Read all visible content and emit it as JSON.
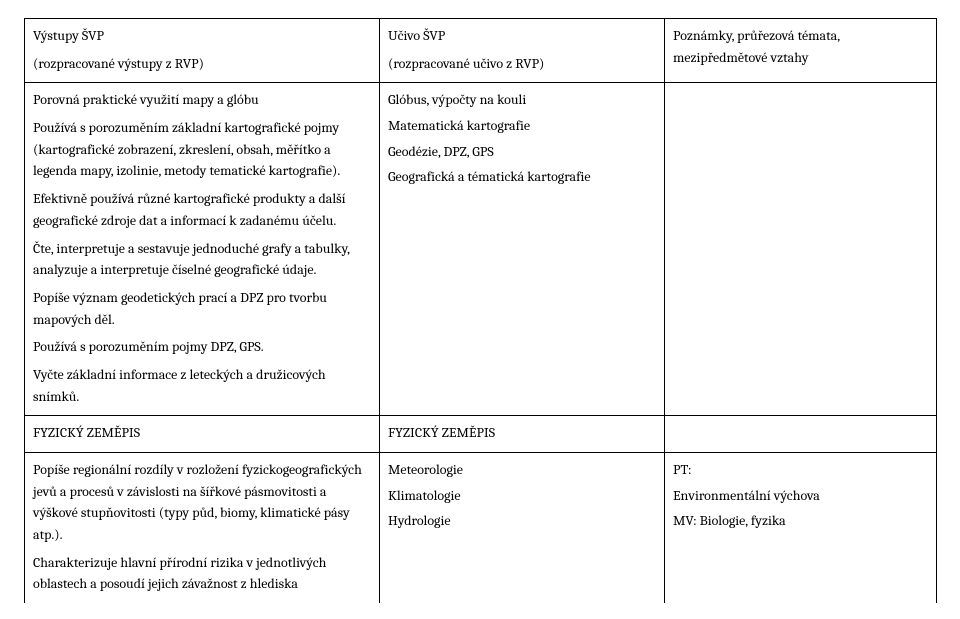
{
  "table": {
    "header": {
      "col1": {
        "line1": "Výstupy ŠVP",
        "line2": "(rozpracované výstupy z RVP)"
      },
      "col2": {
        "line1": "Učivo ŠVP",
        "line2": "(rozpracované učivo z RVP)"
      },
      "col3": {
        "line1": "Poznámky, průřezová témata, mezipředmětové vztahy"
      }
    },
    "row1": {
      "col1": {
        "p1": "Porovná praktické využití mapy a glóbu",
        "p2": "Používá s porozuměním základní kartografické pojmy (kartografické zobrazení, zkreslení, obsah, měřítko a legenda mapy, izolinie, metody tematické kartografie).",
        "p3": "Efektivně používá různé kartografické produkty a další geografické zdroje dat a informací k zadanému účelu.",
        "p4": "Čte, interpretuje a sestavuje jednoduché grafy a tabulky, analyzuje a interpretuje číselné geografické údaje.",
        "p5": "Popíše význam geodetických prací a DPZ pro tvorbu mapových děl.",
        "p6": "Používá s porozuměním pojmy DPZ, GPS.",
        "p7": "Vyčte základní informace z leteckých a družicových snímků."
      },
      "col2": {
        "p1": "Glóbus, výpočty na kouli",
        "p2": "Matematická kartografie",
        "p3": "Geodézie, DPZ, GPS",
        "p4": "Geografická a tématická kartografie"
      },
      "col3": ""
    },
    "row2": {
      "col1": "FYZICKÝ ZEMĚPIS",
      "col2": "FYZICKÝ ZEMĚPIS",
      "col3": ""
    },
    "row3": {
      "col1": {
        "p1": "Popíše regionální rozdíly v rozložení fyzickogeografických jevů a procesů v závislosti na šířkové pásmovitosti a výškové stupňovitosti (typy půd, biomy, klimatické pásy atp.).",
        "p2": "Charakterizuje hlavní přírodní rizika v jednotlivých oblastech a posoudí jejich závažnost z hlediska"
      },
      "col2": {
        "p1": "Meteorologie",
        "p2": "Klimatologie",
        "p3": "Hydrologie"
      },
      "col3": {
        "p1": "PT:",
        "p2": "Environmentální výchova",
        "p3": "MV: Biologie, fyzika"
      }
    }
  }
}
